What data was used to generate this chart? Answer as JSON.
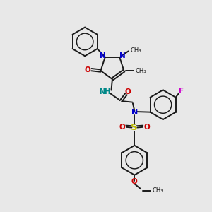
{
  "bg_color": "#e8e8e8",
  "bond_color": "#1a1a1a",
  "n_color": "#0000cc",
  "o_color": "#cc0000",
  "s_color": "#bbbb00",
  "f_color": "#cc00cc",
  "nh_color": "#008888",
  "lw": 1.4,
  "fs": 7.0,
  "figsize": [
    3.0,
    3.0
  ],
  "dpi": 100,
  "xlim": [
    0,
    10
  ],
  "ylim": [
    0,
    10
  ]
}
